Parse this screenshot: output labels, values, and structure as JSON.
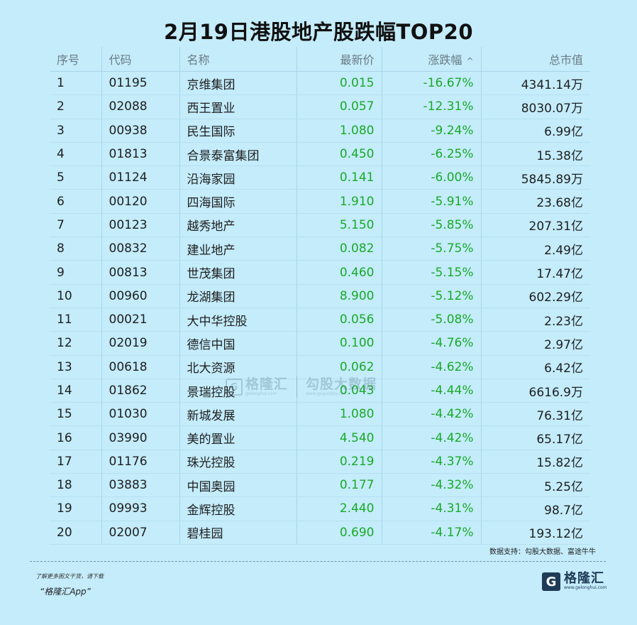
{
  "title": "2月19日港股地产股跌幅TOP20",
  "table": {
    "headers": {
      "rank": "序号",
      "code": "代码",
      "name": "名称",
      "price": "最新价",
      "change": "涨跌幅",
      "sort_icon": "^",
      "mktcap": "总市值"
    },
    "rows": [
      {
        "rank": "1",
        "code": "01195",
        "name": "京维集团",
        "price": "0.015",
        "change": "-16.67%",
        "mktcap": "4341.14万"
      },
      {
        "rank": "2",
        "code": "02088",
        "name": "西王置业",
        "price": "0.057",
        "change": "-12.31%",
        "mktcap": "8030.07万"
      },
      {
        "rank": "3",
        "code": "00938",
        "name": "民生国际",
        "price": "1.080",
        "change": "-9.24%",
        "mktcap": "6.99亿"
      },
      {
        "rank": "4",
        "code": "01813",
        "name": "合景泰富集团",
        "price": "0.450",
        "change": "-6.25%",
        "mktcap": "15.38亿"
      },
      {
        "rank": "5",
        "code": "01124",
        "name": "沿海家园",
        "price": "0.141",
        "change": "-6.00%",
        "mktcap": "5845.89万"
      },
      {
        "rank": "6",
        "code": "00120",
        "name": "四海国际",
        "price": "1.910",
        "change": "-5.91%",
        "mktcap": "23.68亿"
      },
      {
        "rank": "7",
        "code": "00123",
        "name": "越秀地产",
        "price": "5.150",
        "change": "-5.85%",
        "mktcap": "207.31亿"
      },
      {
        "rank": "8",
        "code": "00832",
        "name": "建业地产",
        "price": "0.082",
        "change": "-5.75%",
        "mktcap": "2.49亿"
      },
      {
        "rank": "9",
        "code": "00813",
        "name": "世茂集团",
        "price": "0.460",
        "change": "-5.15%",
        "mktcap": "17.47亿"
      },
      {
        "rank": "10",
        "code": "00960",
        "name": "龙湖集团",
        "price": "8.900",
        "change": "-5.12%",
        "mktcap": "602.29亿"
      },
      {
        "rank": "11",
        "code": "00021",
        "name": "大中华控股",
        "price": "0.056",
        "change": "-5.08%",
        "mktcap": "2.23亿"
      },
      {
        "rank": "12",
        "code": "02019",
        "name": "德信中国",
        "price": "0.100",
        "change": "-4.76%",
        "mktcap": "2.97亿"
      },
      {
        "rank": "13",
        "code": "00618",
        "name": "北大资源",
        "price": "0.062",
        "change": "-4.62%",
        "mktcap": "6.42亿"
      },
      {
        "rank": "14",
        "code": "01862",
        "name": "景瑞控股",
        "price": "0.043",
        "change": "-4.44%",
        "mktcap": "6616.9万"
      },
      {
        "rank": "15",
        "code": "01030",
        "name": "新城发展",
        "price": "1.080",
        "change": "-4.42%",
        "mktcap": "76.31亿"
      },
      {
        "rank": "16",
        "code": "03990",
        "name": "美的置业",
        "price": "4.540",
        "change": "-4.42%",
        "mktcap": "65.17亿"
      },
      {
        "rank": "17",
        "code": "01176",
        "name": "珠光控股",
        "price": "0.219",
        "change": "-4.37%",
        "mktcap": "15.82亿"
      },
      {
        "rank": "18",
        "code": "03883",
        "name": "中国奥园",
        "price": "0.177",
        "change": "-4.32%",
        "mktcap": "5.25亿"
      },
      {
        "rank": "19",
        "code": "09993",
        "name": "金辉控股",
        "price": "2.440",
        "change": "-4.31%",
        "mktcap": "98.7亿"
      },
      {
        "rank": "20",
        "code": "02007",
        "name": "碧桂园",
        "price": "0.690",
        "change": "-4.17%",
        "mktcap": "193.12亿"
      }
    ]
  },
  "source_note": "数据支持：勾股大数据、富途牛牛",
  "promo": {
    "line1": "了解更多图文干货，请下载",
    "line2": "“格隆汇App”"
  },
  "logo": {
    "mark": "G",
    "name": "格隆汇",
    "url": "www.gelonghui.com"
  },
  "watermark": {
    "left_name": "格隆汇",
    "left_url": "gelonghui.com",
    "right_name": "勾股大数据",
    "right_url": "www.gogudata.com"
  },
  "colors": {
    "background": "#c4ecfb",
    "positive_green": "#1aa928",
    "header_text": "#6b7b85",
    "brand_dark": "#1f3b57"
  }
}
